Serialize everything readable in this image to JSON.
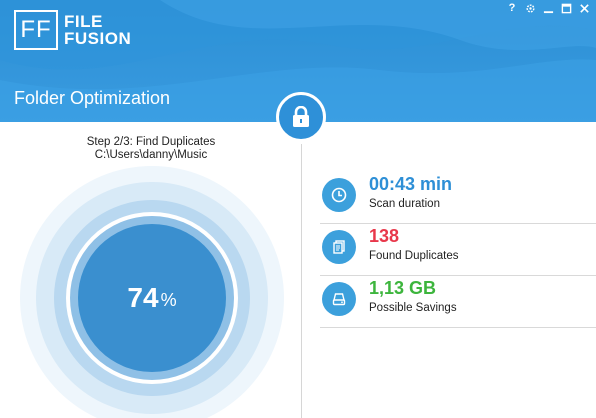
{
  "app": {
    "logo_mark": "FF",
    "logo_line1": "FILE",
    "logo_line2": "FUSION",
    "window_controls": {
      "help": "?",
      "icons": [
        "gear-icon",
        "minimize-icon",
        "maximize-icon",
        "close-icon"
      ]
    }
  },
  "header": {
    "title": "Folder Optimization",
    "lock_icon": "lock-icon"
  },
  "progress": {
    "step": "Step 2/3: Find Duplicates",
    "path": "C:\\Users\\danny\\Music",
    "value": "74",
    "unit": "%"
  },
  "stats": [
    {
      "icon": "clock-icon",
      "value": "00:43 min",
      "label": "Scan duration",
      "color": "#2e8fd6"
    },
    {
      "icon": "duplicate-files-icon",
      "value": "138",
      "label": "Found Duplicates",
      "color": "#e8374a"
    },
    {
      "icon": "hard-drive-icon",
      "value": "1,13 GB",
      "label": "Possible Savings",
      "color": "#3db53d"
    }
  ],
  "colors": {
    "header_blue": "#2b8fd4",
    "accent_blue": "#3ca0dc",
    "ring_outer": "#eef6fc",
    "ring_2": "#d8eaf7",
    "ring_3": "#b9d8f0",
    "ring_4": "#8fc0e6",
    "core": "#3a8fcf"
  }
}
